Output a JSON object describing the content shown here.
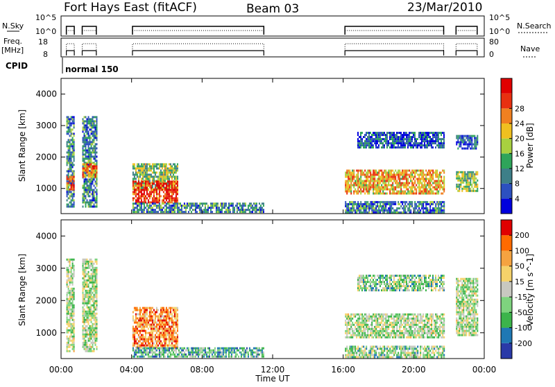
{
  "header": {
    "title": "Fort Hays East (fitACF)",
    "beam": "Beam 03",
    "date": "23/Mar/2010"
  },
  "top_panels": {
    "nsky_label": "N.Sky",
    "nsky_ticks": [
      "10^5",
      "10^0"
    ],
    "nsearch_label": "N.Search",
    "nsearch_ticks": [
      "10^5",
      "10^0"
    ],
    "freq_label": "Freq.",
    "freq_unit": "[MHz]",
    "freq_ticks": [
      "18",
      "8"
    ],
    "nave_label": "Nave",
    "nave_ticks": [
      "80",
      "0"
    ],
    "cpid_label": "CPID",
    "cpid_value": "normal 150"
  },
  "chart_data": [
    {
      "type": "heatmap",
      "name": "power",
      "ylabel": "Slant Range [km]",
      "y_ticks": [
        1000,
        2000,
        3000,
        4000
      ],
      "ylim": [
        200,
        4500
      ],
      "xlim": [
        0,
        24
      ],
      "colorbar": {
        "label": "Power [dB]",
        "ticks": [
          4,
          8,
          12,
          16,
          20,
          24,
          28
        ],
        "colors": [
          "#0000dd",
          "#2c50c0",
          "#3d7f88",
          "#2ea45a",
          "#a8d040",
          "#f0c020",
          "#f08020",
          "#e83010",
          "#e00000"
        ]
      },
      "regions": [
        {
          "t": [
            0.3,
            0.75
          ],
          "r": [
            400,
            3300
          ],
          "level": 0.3
        },
        {
          "t": [
            0.3,
            0.75
          ],
          "r": [
            1000,
            1400
          ],
          "level": 0.75
        },
        {
          "t": [
            1.2,
            2.0
          ],
          "r": [
            400,
            3300
          ],
          "level": 0.3
        },
        {
          "t": [
            1.2,
            2.0
          ],
          "r": [
            1400,
            1800
          ],
          "level": 0.7
        },
        {
          "t": [
            4.05,
            6.6
          ],
          "r": [
            1000,
            1800
          ],
          "level": 0.45
        },
        {
          "t": [
            4.05,
            6.6
          ],
          "r": [
            550,
            1250
          ],
          "level": 0.85
        },
        {
          "t": [
            4.05,
            11.5
          ],
          "r": [
            250,
            550
          ],
          "level": 0.3
        },
        {
          "t": [
            16.1,
            21.7
          ],
          "r": [
            850,
            1600
          ],
          "level": 0.65
        },
        {
          "t": [
            16.1,
            21.7
          ],
          "r": [
            250,
            600
          ],
          "level": 0.25
        },
        {
          "t": [
            16.8,
            21.7
          ],
          "r": [
            2300,
            2800
          ],
          "level": 0.2
        },
        {
          "t": [
            22.4,
            23.6
          ],
          "r": [
            900,
            1550
          ],
          "level": 0.45
        },
        {
          "t": [
            22.4,
            23.6
          ],
          "r": [
            2250,
            2700
          ],
          "level": 0.2
        }
      ]
    },
    {
      "type": "heatmap",
      "name": "velocity",
      "ylabel": "Slant Range [km]",
      "xlabel": "Time UT",
      "x_ticks": [
        "00:00",
        "04:00",
        "08:00",
        "12:00",
        "16:00",
        "20:00",
        "00:00"
      ],
      "y_ticks": [
        1000,
        2000,
        3000,
        4000
      ],
      "ylim": [
        200,
        4500
      ],
      "xlim": [
        0,
        24
      ],
      "colorbar": {
        "label": "Velocity [m s^-1]",
        "ticks": [
          200,
          100,
          50,
          15,
          -15,
          -50,
          -100,
          -200
        ],
        "colors": [
          "#2a3aa8",
          "#1f78b4",
          "#3cb44b",
          "#7ed37e",
          "#c8c8c0",
          "#f5d26a",
          "#f5a340",
          "#ff6a00",
          "#e00000"
        ]
      },
      "regions": [
        {
          "t": [
            0.3,
            0.75
          ],
          "r": [
            400,
            3300
          ],
          "level": 0.45
        },
        {
          "t": [
            1.2,
            2.0
          ],
          "r": [
            400,
            3300
          ],
          "level": 0.45
        },
        {
          "t": [
            4.05,
            6.6
          ],
          "r": [
            550,
            1800
          ],
          "level": 0.75
        },
        {
          "t": [
            4.05,
            11.5
          ],
          "r": [
            250,
            550
          ],
          "level": 0.3
        },
        {
          "t": [
            16.1,
            21.7
          ],
          "r": [
            850,
            1600
          ],
          "level": 0.45
        },
        {
          "t": [
            16.1,
            21.7
          ],
          "r": [
            250,
            600
          ],
          "level": 0.4
        },
        {
          "t": [
            16.8,
            21.7
          ],
          "r": [
            2300,
            2800
          ],
          "level": 0.4
        },
        {
          "t": [
            22.4,
            23.6
          ],
          "r": [
            900,
            2700
          ],
          "level": 0.45
        }
      ]
    }
  ]
}
